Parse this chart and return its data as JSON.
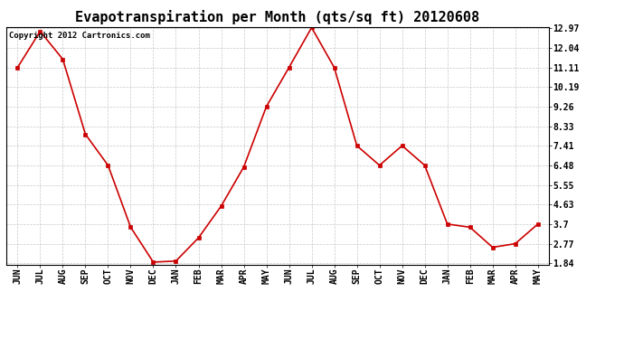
{
  "title": "Evapotranspiration per Month (qts/sq ft) 20120608",
  "copyright": "Copyright 2012 Cartronics.com",
  "months": [
    "JUN",
    "JUL",
    "AUG",
    "SEP",
    "OCT",
    "NOV",
    "DEC",
    "JAN",
    "FEB",
    "MAR",
    "APR",
    "MAY",
    "JUN",
    "JUL",
    "AUG",
    "SEP",
    "OCT",
    "NOV",
    "DEC",
    "JAN",
    "FEB",
    "MAR",
    "APR",
    "MAY"
  ],
  "values": [
    11.11,
    12.82,
    11.5,
    7.95,
    6.48,
    3.55,
    1.9,
    1.95,
    3.05,
    4.55,
    6.4,
    9.26,
    11.11,
    13.0,
    11.11,
    7.41,
    6.48,
    7.41,
    6.48,
    3.7,
    3.55,
    2.6,
    2.77,
    3.7
  ],
  "line_color": "#cc0000",
  "marker_color": "#cc0000",
  "bg_color": "#ffffff",
  "grid_color": "#c8c8c8",
  "yticks": [
    1.84,
    2.77,
    3.7,
    4.63,
    5.55,
    6.48,
    7.41,
    8.33,
    9.26,
    10.19,
    11.11,
    12.04,
    12.97
  ],
  "ylim_min": 1.84,
  "ylim_max": 12.97,
  "title_fontsize": 11,
  "tick_fontsize": 7,
  "copyright_fontsize": 6.5
}
